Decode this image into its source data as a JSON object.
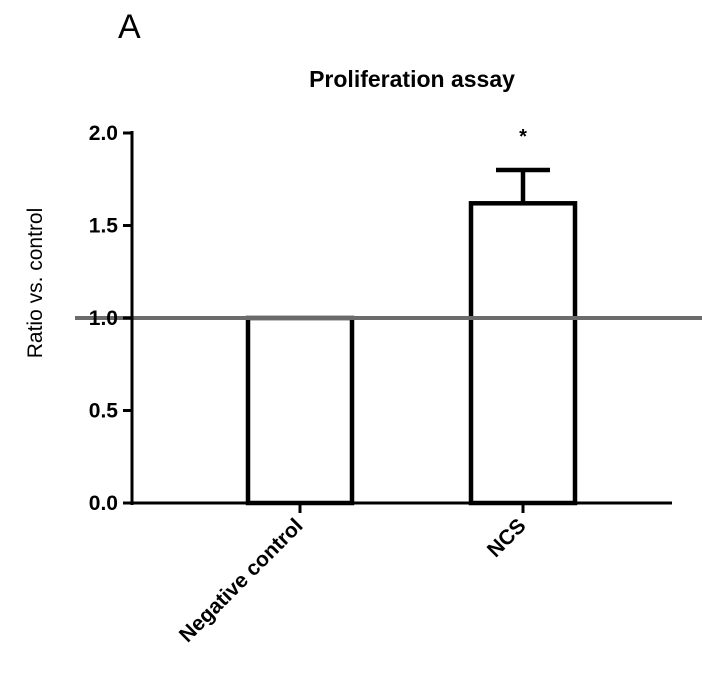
{
  "panel_label": "A",
  "chart_data": {
    "type": "bar",
    "title": "Proliferation assay",
    "xlabel": "",
    "ylabel": "Ratio vs. control",
    "categories": [
      "Negative control",
      "NCS"
    ],
    "values": [
      1.0,
      1.62
    ],
    "error_upper": [
      0.0,
      0.18
    ],
    "annotations": [
      "",
      "*"
    ],
    "ylim": [
      0,
      2.0
    ],
    "yticks": [
      "0.0",
      "0.5",
      "1.0",
      "1.5",
      "2.0"
    ],
    "reference_line": 1.0,
    "grid": false,
    "colors": {
      "bar_fill": "#ffffff",
      "bar_stroke": "#000000",
      "reference_line": "#6b6b6b",
      "axis": "#000000"
    }
  }
}
